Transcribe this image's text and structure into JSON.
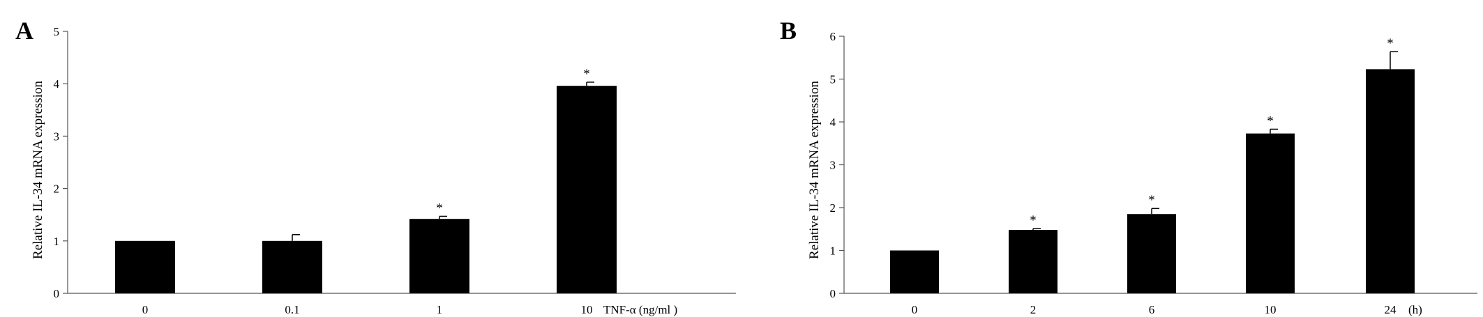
{
  "chart_data": [
    {
      "panel": "A",
      "type": "bar",
      "ylabel": "Relative IL-34 mRNA expression",
      "xlabel": "TNF-α (ng/ml )",
      "ylim": [
        0,
        5
      ],
      "yticks": [
        0,
        1,
        2,
        3,
        4,
        5
      ],
      "categories": [
        "0",
        "0.1",
        "1",
        "10"
      ],
      "values": [
        1.0,
        1.0,
        1.42,
        3.96
      ],
      "errors": [
        0.0,
        0.12,
        0.05,
        0.07
      ],
      "significance": [
        "",
        "",
        "*",
        "*"
      ],
      "bar_color": "#000000"
    },
    {
      "panel": "B",
      "type": "bar",
      "ylabel": "Relative IL-34 mRNA expression",
      "xlabel": "(h)",
      "ylim": [
        0,
        6
      ],
      "yticks": [
        0,
        1,
        2,
        3,
        4,
        5,
        6
      ],
      "categories": [
        "0",
        "2",
        "6",
        "10",
        "24"
      ],
      "values": [
        1.0,
        1.48,
        1.85,
        3.73,
        5.23
      ],
      "errors": [
        0.0,
        0.03,
        0.13,
        0.1,
        0.41
      ],
      "significance": [
        "",
        "*",
        "*",
        "*",
        "*"
      ],
      "bar_color": "#000000"
    }
  ]
}
